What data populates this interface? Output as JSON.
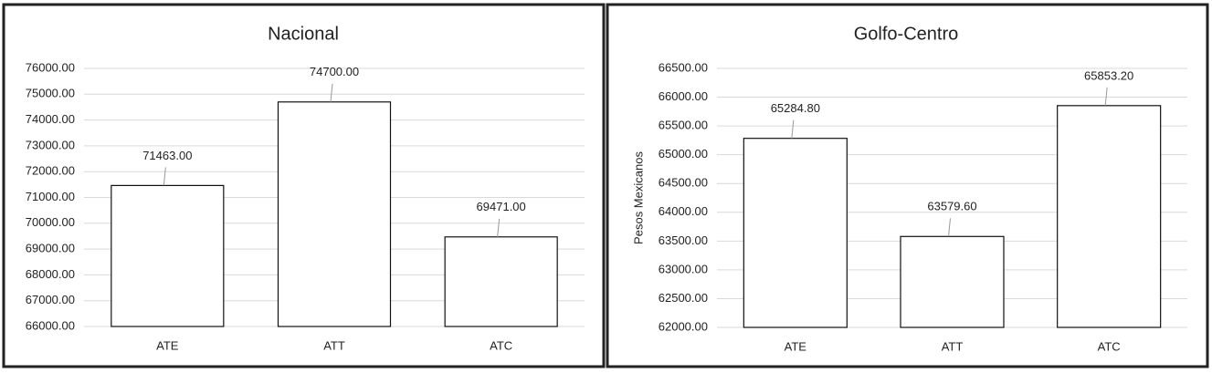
{
  "chart_data": [
    {
      "type": "bar",
      "title": "Nacional",
      "categories": [
        "ATE",
        "ATT",
        "ATC"
      ],
      "values": [
        71463,
        74700,
        69471
      ],
      "value_labels": [
        "71463.00",
        "74700.00",
        "69471.00"
      ],
      "color": "#ffffff",
      "ylim": [
        66000,
        76000
      ],
      "yticks": [
        {
          "value": 66000,
          "label": "66000.00"
        },
        {
          "value": 67000,
          "label": "67000.00"
        },
        {
          "value": 68000,
          "label": "68000.00"
        },
        {
          "value": 69000,
          "label": "69000.00"
        },
        {
          "value": 70000,
          "label": "70000.00"
        },
        {
          "value": 71000,
          "label": "71000.00"
        },
        {
          "value": 72000,
          "label": "72000.00"
        },
        {
          "value": 73000,
          "label": "73000.00"
        },
        {
          "value": 74000,
          "label": "74000.00"
        },
        {
          "value": 75000,
          "label": "75000.00"
        },
        {
          "value": 76000,
          "label": "76000.00"
        }
      ],
      "grid": true
    },
    {
      "type": "bar",
      "title": "Golfo-Centro",
      "y_label": "Pesos Mexicanos",
      "categories": [
        "ATE",
        "ATT",
        "ATC"
      ],
      "values": [
        65284.8,
        63579.6,
        65853.2
      ],
      "value_labels": [
        "65284.80",
        "63579.60",
        "65853.20"
      ],
      "color": "#ffffff",
      "ylim": [
        62000,
        66500
      ],
      "yticks": [
        {
          "value": 62000,
          "label": "62000.00"
        },
        {
          "value": 62500,
          "label": "62500.00"
        },
        {
          "value": 63000,
          "label": "63000.00"
        },
        {
          "value": 63500,
          "label": "63500.00"
        },
        {
          "value": 64000,
          "label": "64000.00"
        },
        {
          "value": 64500,
          "label": "64500.00"
        },
        {
          "value": 65000,
          "label": "65000.00"
        },
        {
          "value": 65500,
          "label": "65500.00"
        },
        {
          "value": 66000,
          "label": "66000.00"
        },
        {
          "value": 66500,
          "label": "66500.00"
        }
      ],
      "grid": true
    }
  ]
}
